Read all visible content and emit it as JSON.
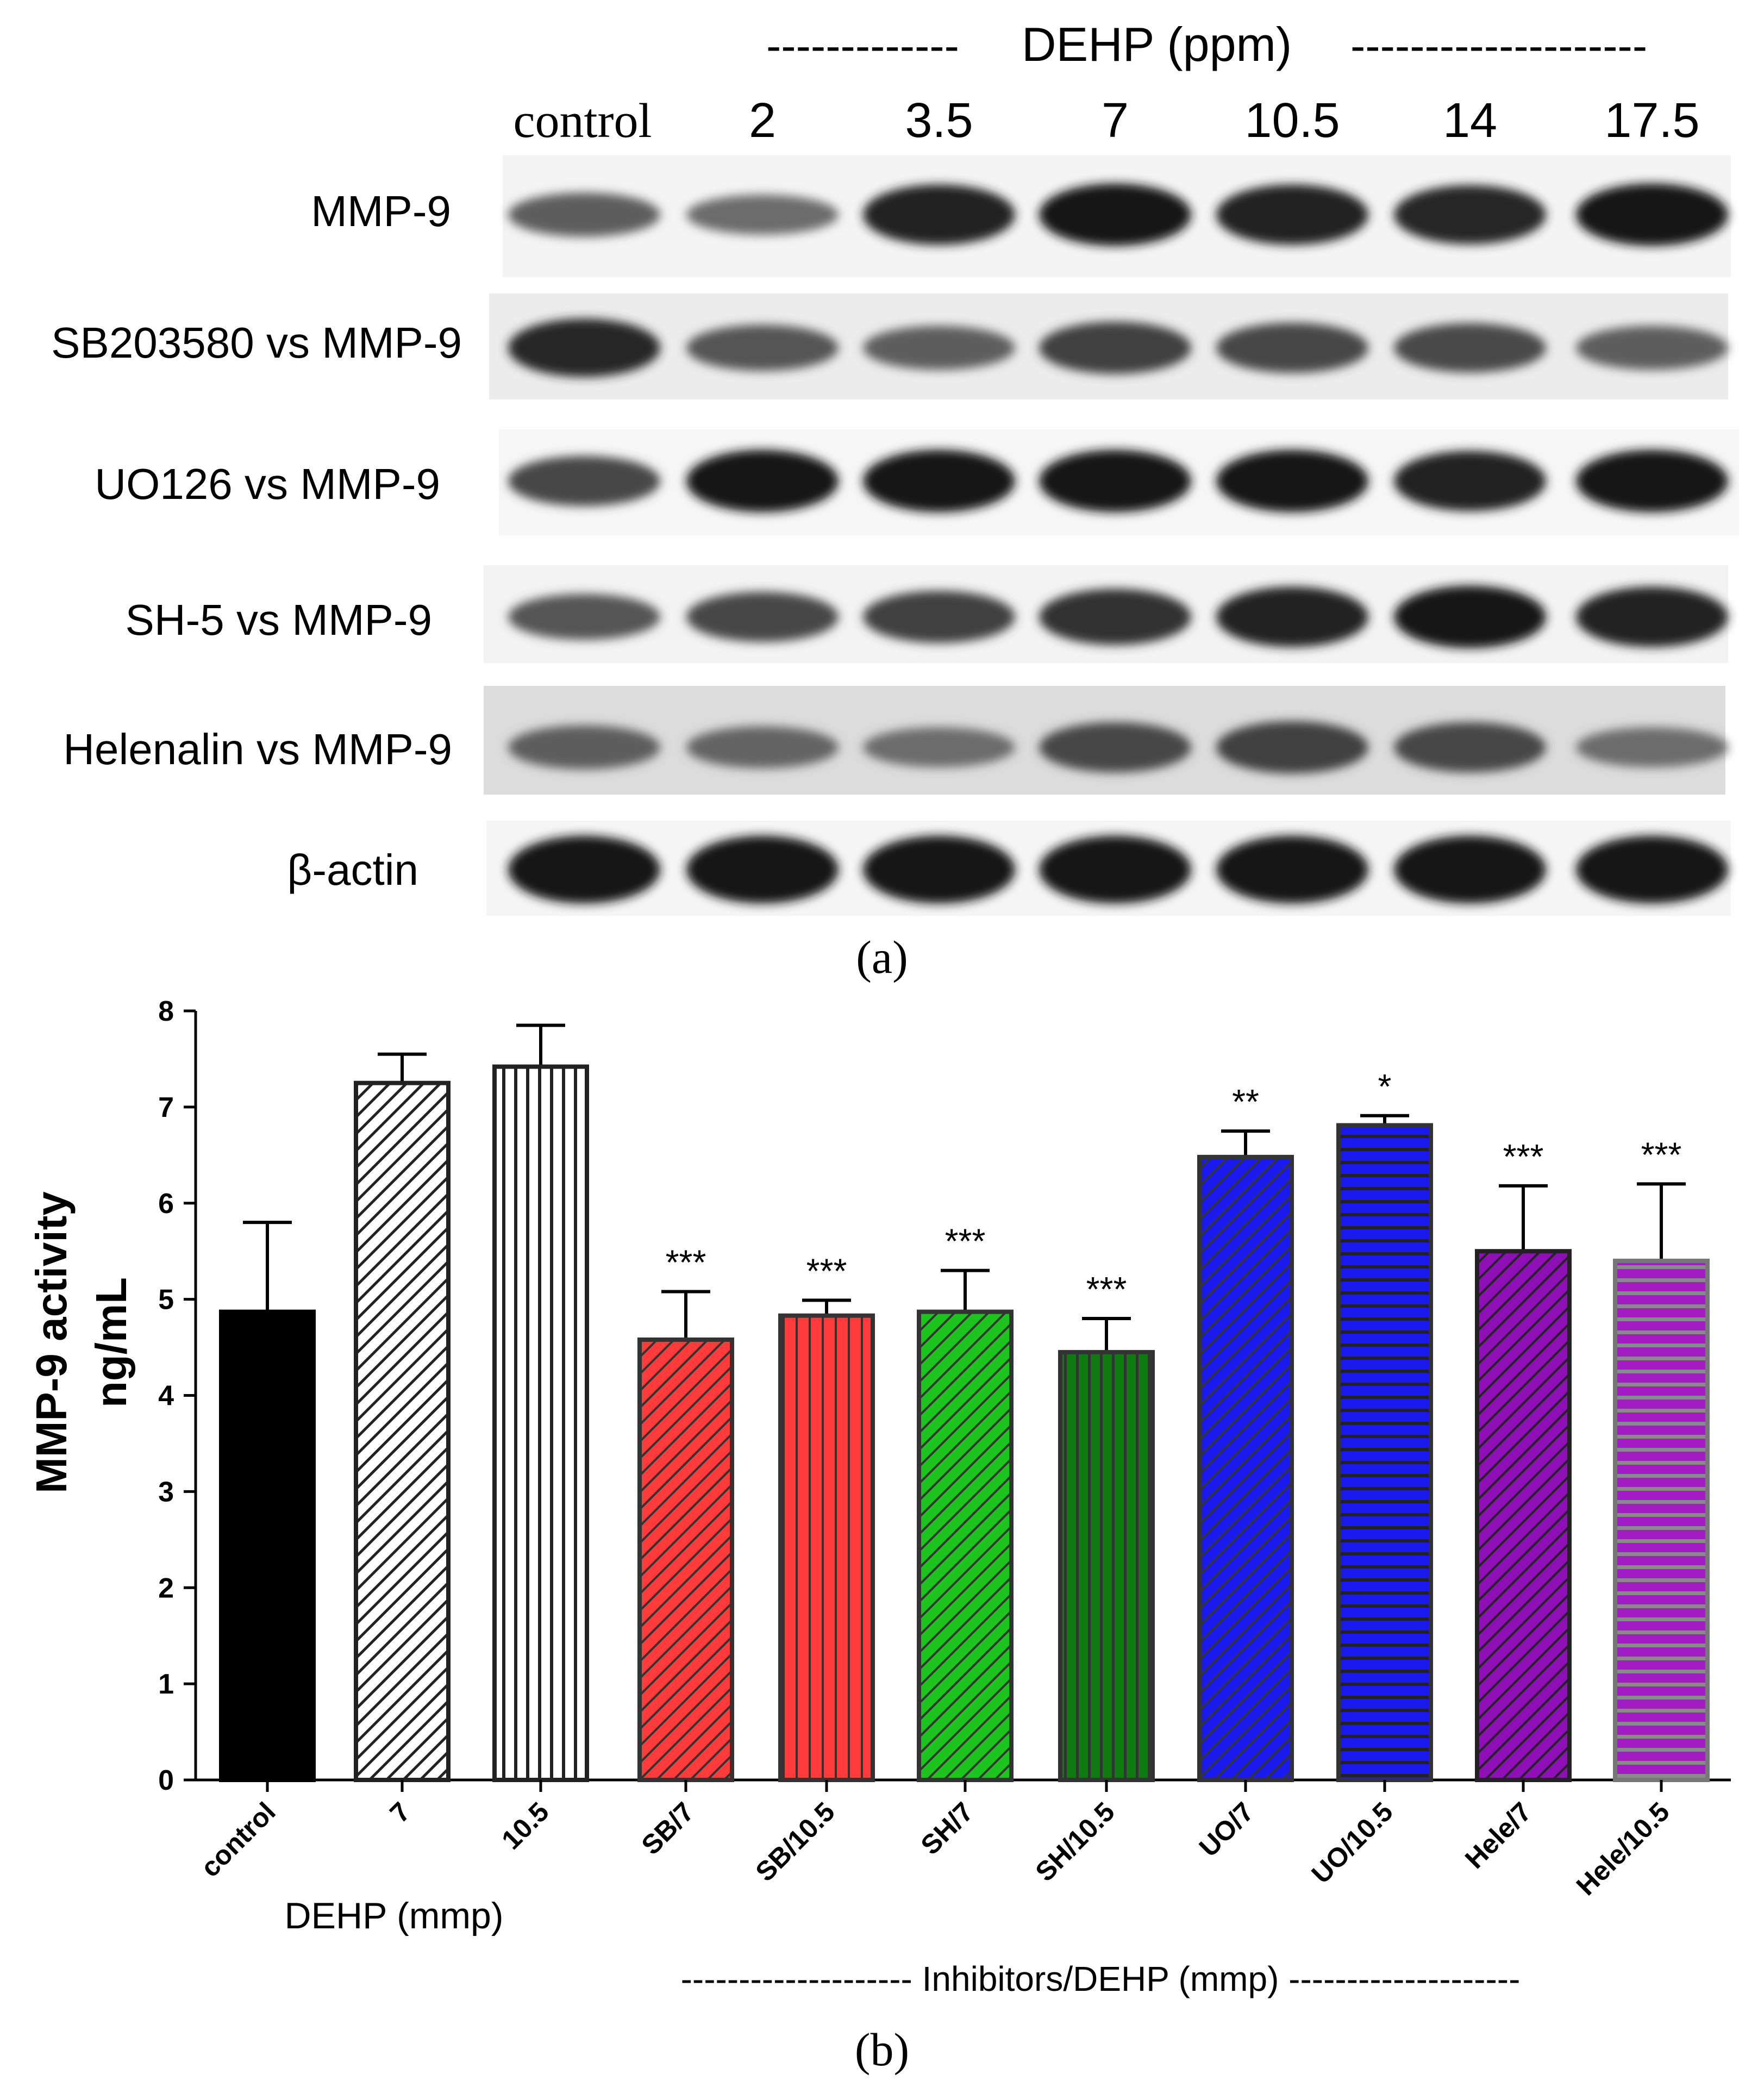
{
  "panel_a": {
    "label": "(a)",
    "header_dashes_left": "-------------",
    "header_title": "DEHP (ppm)",
    "header_dashes_right": "--------------------",
    "lanes": [
      "control",
      "2",
      "3.5",
      "7",
      "10.5",
      "14",
      "17.5"
    ],
    "blots": [
      {
        "label": "MMP-9",
        "intensity": [
          0.55,
          0.45,
          0.95,
          1.0,
          0.95,
          0.92,
          1.0
        ]
      },
      {
        "label": "SB203580 vs MMP-9",
        "intensity": [
          0.9,
          0.6,
          0.55,
          0.75,
          0.7,
          0.68,
          0.55
        ]
      },
      {
        "label": "UO126 vs MMP-9",
        "intensity": [
          0.7,
          1.0,
          1.0,
          1.0,
          1.0,
          0.95,
          1.0
        ]
      },
      {
        "label": "SH-5 vs MMP-9",
        "intensity": [
          0.6,
          0.7,
          0.75,
          0.85,
          0.95,
          1.0,
          0.95
        ]
      },
      {
        "label": "Helenalin vs MMP-9",
        "intensity": [
          0.55,
          0.5,
          0.45,
          0.7,
          0.75,
          0.7,
          0.45
        ]
      },
      {
        "label": "β-actin",
        "intensity": [
          1.0,
          1.0,
          1.0,
          1.0,
          1.0,
          1.0,
          1.0
        ]
      }
    ]
  },
  "panel_b": {
    "label": "(b)",
    "ylabel_line1": "MMP-9 activity",
    "ylabel_line2": "ng/mL",
    "group_label_left": "DEHP (mmp)",
    "group_label_right": "-------------------- Inhibitors/DEHP (mmp) --------------------"
  },
  "chart_data": {
    "type": "bar",
    "title": "",
    "xlabel": "DEHP (mmp) / Inhibitors/DEHP (mmp)",
    "ylabel": "MMP-9 activity ng/mL",
    "ylim": [
      0,
      8
    ],
    "yticks": [
      0,
      1,
      2,
      3,
      4,
      5,
      6,
      7,
      8
    ],
    "categories": [
      "control",
      "7",
      "10.5",
      "SB/7",
      "SB/10.5",
      "SH/7",
      "SH/10.5",
      "UO/7",
      "UO/10.5",
      "Hele/7",
      "Hele/10.5"
    ],
    "values": [
      4.87,
      7.25,
      7.42,
      4.58,
      4.83,
      4.87,
      4.45,
      6.48,
      6.81,
      5.5,
      5.4
    ],
    "errors": [
      0.93,
      0.3,
      0.43,
      0.5,
      0.16,
      0.43,
      0.35,
      0.27,
      0.1,
      0.68,
      0.8
    ],
    "significance": [
      "",
      "",
      "",
      "***",
      "***",
      "***",
      "***",
      "**",
      "*",
      "***",
      "***"
    ],
    "fills": [
      "#000000",
      "#ffffff",
      "#ffffff",
      "#ff3b3b",
      "#ff3b3b",
      "#1ec41e",
      "#0f7a0f",
      "#1a1aee",
      "#1a1aee",
      "#8e0fb5",
      "#a31cc4"
    ],
    "patterns": [
      "solid",
      "diag-black",
      "vert-black",
      "diag",
      "vert",
      "diag",
      "vert",
      "diag",
      "horiz",
      "diag",
      "horiz-grey"
    ],
    "grid": false,
    "legend": "none"
  }
}
